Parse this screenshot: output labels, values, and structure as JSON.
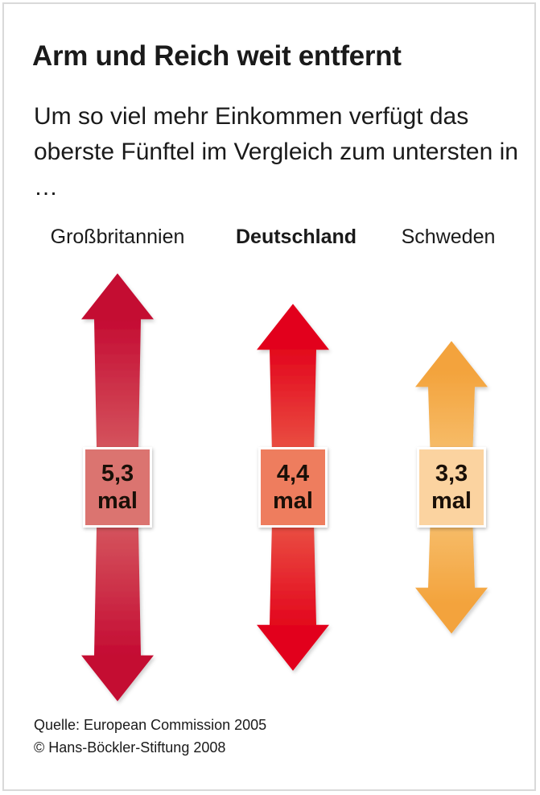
{
  "title": "Arm und Reich weit entfernt",
  "subtitle": "Um so viel mehr Einkommen verfügt das oberste Fünftel im Vergleich zum untersten in …",
  "chart_data": {
    "type": "bar",
    "categories": [
      "Großbritannien",
      "Deutschland",
      "Schweden"
    ],
    "highlighted_category": "Deutschland",
    "values": [
      5.3,
      4.4,
      3.3
    ],
    "value_labels": [
      "5,3",
      "4,4",
      "3,3"
    ],
    "unit_label": "mal",
    "colors": [
      {
        "tip": "#c40a32",
        "mid": "#d96a6a",
        "box": "#db7470"
      },
      {
        "tip": "#e2001a",
        "mid": "#ec6a50",
        "box": "#ee7d5e"
      },
      {
        "tip": "#f3a33c",
        "mid": "#f8c87e",
        "box": "#fbd3a0"
      }
    ]
  },
  "source": "Quelle: European Commission 2005",
  "copyright": "© Hans-Böckler-Stiftung 2008"
}
